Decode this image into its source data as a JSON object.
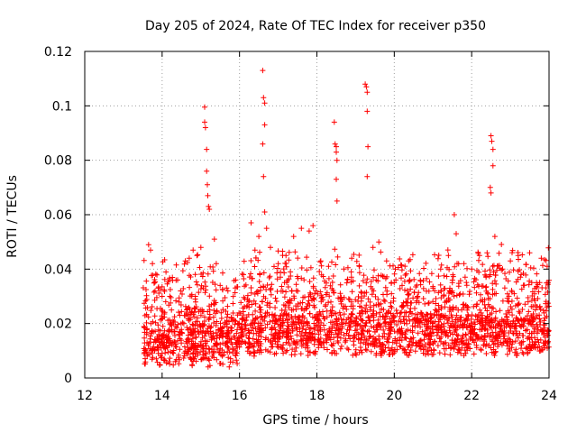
{
  "chart_data": {
    "type": "scatter",
    "title": "Day 205 of 2024, Rate Of TEC Index for receiver p350",
    "xlabel": "GPS time / hours",
    "ylabel": "ROTI / TECUs",
    "xlim": [
      12,
      24
    ],
    "ylim": [
      0,
      0.12
    ],
    "xticks": [
      12,
      14,
      16,
      18,
      20,
      22,
      24
    ],
    "yticks": [
      0,
      0.02,
      0.04,
      0.06,
      0.08,
      0.1,
      0.12
    ],
    "xtick_labels": [
      "12",
      "14",
      "16",
      "18",
      "20",
      "22",
      "24"
    ],
    "ytick_labels": [
      "0",
      "0.02",
      "0.04",
      "0.06",
      "0.08",
      "0.1",
      "0.12"
    ],
    "grid": true,
    "marker": "+",
    "color": "#ff0000",
    "series": [
      {
        "name": "ROTI",
        "points": [
          [
            13.65,
            0.049
          ],
          [
            13.7,
            0.047
          ],
          [
            13.75,
            0.042
          ],
          [
            13.8,
            0.035
          ],
          [
            13.9,
            0.033
          ],
          [
            14.0,
            0.03
          ],
          [
            14.2,
            0.03
          ],
          [
            14.4,
            0.036
          ],
          [
            14.6,
            0.043
          ],
          [
            14.7,
            0.044
          ],
          [
            14.8,
            0.047
          ],
          [
            14.9,
            0.045
          ],
          [
            15.0,
            0.048
          ],
          [
            15.1,
            0.0995
          ],
          [
            15.1,
            0.094
          ],
          [
            15.12,
            0.092
          ],
          [
            15.15,
            0.084
          ],
          [
            15.15,
            0.076
          ],
          [
            15.17,
            0.071
          ],
          [
            15.18,
            0.067
          ],
          [
            15.2,
            0.063
          ],
          [
            15.22,
            0.062
          ],
          [
            15.35,
            0.051
          ],
          [
            15.4,
            0.042
          ],
          [
            15.5,
            0.034
          ],
          [
            15.7,
            0.032
          ],
          [
            15.9,
            0.036
          ],
          [
            16.1,
            0.038
          ],
          [
            16.3,
            0.057
          ],
          [
            16.4,
            0.047
          ],
          [
            16.5,
            0.052
          ],
          [
            16.6,
            0.113
          ],
          [
            16.62,
            0.103
          ],
          [
            16.65,
            0.101
          ],
          [
            16.65,
            0.093
          ],
          [
            16.6,
            0.086
          ],
          [
            16.62,
            0.074
          ],
          [
            16.65,
            0.061
          ],
          [
            16.7,
            0.055
          ],
          [
            16.8,
            0.048
          ],
          [
            17.0,
            0.042
          ],
          [
            17.2,
            0.045
          ],
          [
            17.4,
            0.052
          ],
          [
            17.6,
            0.055
          ],
          [
            17.8,
            0.054
          ],
          [
            17.9,
            0.056
          ],
          [
            18.1,
            0.043
          ],
          [
            18.3,
            0.041
          ],
          [
            18.45,
            0.094
          ],
          [
            18.47,
            0.086
          ],
          [
            18.5,
            0.085
          ],
          [
            18.5,
            0.083
          ],
          [
            18.52,
            0.08
          ],
          [
            18.5,
            0.073
          ],
          [
            18.52,
            0.065
          ],
          [
            18.7,
            0.04
          ],
          [
            18.9,
            0.044
          ],
          [
            19.1,
            0.041
          ],
          [
            19.25,
            0.108
          ],
          [
            19.28,
            0.107
          ],
          [
            19.3,
            0.105
          ],
          [
            19.3,
            0.098
          ],
          [
            19.32,
            0.085
          ],
          [
            19.3,
            0.074
          ],
          [
            19.45,
            0.048
          ],
          [
            19.6,
            0.05
          ],
          [
            19.8,
            0.043
          ],
          [
            20.0,
            0.035
          ],
          [
            20.3,
            0.028
          ],
          [
            20.6,
            0.03
          ],
          [
            21.0,
            0.033
          ],
          [
            21.2,
            0.04
          ],
          [
            21.4,
            0.045
          ],
          [
            21.55,
            0.06
          ],
          [
            21.6,
            0.053
          ],
          [
            21.8,
            0.042
          ],
          [
            22.0,
            0.04
          ],
          [
            22.2,
            0.045
          ],
          [
            22.4,
            0.046
          ],
          [
            22.5,
            0.089
          ],
          [
            22.52,
            0.087
          ],
          [
            22.55,
            0.084
          ],
          [
            22.55,
            0.078
          ],
          [
            22.48,
            0.07
          ],
          [
            22.5,
            0.068
          ],
          [
            22.6,
            0.052
          ],
          [
            22.8,
            0.04
          ],
          [
            23.0,
            0.043
          ],
          [
            23.2,
            0.045
          ],
          [
            23.5,
            0.046
          ],
          [
            23.8,
            0.044
          ],
          [
            23.95,
            0.041
          ]
        ]
      }
    ],
    "dense_band": {
      "description": "Dense continuous cloud of '+' markers from hour 13.5 to 24 mostly between 0.004 and 0.035",
      "x_range": [
        13.5,
        24
      ],
      "typical_range": [
        0.004,
        0.035
      ]
    }
  }
}
